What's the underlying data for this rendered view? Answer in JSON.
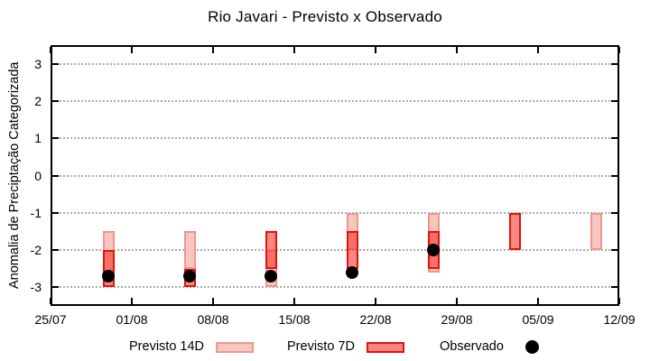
{
  "chart_data": {
    "type": "bar",
    "subtype": "overlapping-range-bars-with-points",
    "title": "Rio Javari - Previsto x Observado",
    "ylabel": "Anomalia de Preciptação Categorizada",
    "xlabel": "",
    "ylim": [
      -3.5,
      3.5
    ],
    "yticks": [
      3,
      2,
      1,
      0,
      -1,
      -2,
      -3
    ],
    "xtick_labels": [
      "25/07",
      "01/08",
      "08/08",
      "15/08",
      "22/08",
      "29/08",
      "05/09",
      "12/09"
    ],
    "xtick_days": [
      0,
      7,
      14,
      21,
      28,
      35,
      42,
      49
    ],
    "x_total_days": 49,
    "grid": "horizontal dotted gray lines at integer y values, no vertical grid",
    "legend_position": "bottom, outside plot",
    "colors": {
      "previsto_14d_fill": "#f8c6c0",
      "previsto_14d_border": "#ef968e",
      "previsto_7d_fill": "rgba(247,50,40,0.58)",
      "previsto_7d_border": "#e3120b",
      "observado": "#000000",
      "gridline": "#ababab",
      "frame": "#000000"
    },
    "series": [
      {
        "name": "Previsto 14D",
        "type": "range-bar",
        "points": [
          {
            "date": "30/07",
            "day": 5,
            "high": -1.5,
            "low": -2.6
          },
          {
            "date": "06/08",
            "day": 12,
            "high": -1.5,
            "low": -2.5
          },
          {
            "date": "13/08",
            "day": 19,
            "high": -2.0,
            "low": -3.0
          },
          {
            "date": "20/08",
            "day": 26,
            "high": -1.0,
            "low": -2.0
          },
          {
            "date": "27/08",
            "day": 33,
            "high": -1.0,
            "low": -2.6
          },
          {
            "date": "10/09",
            "day": 47,
            "high": -1.0,
            "low": -2.0
          }
        ]
      },
      {
        "name": "Previsto 7D",
        "type": "range-bar",
        "points": [
          {
            "date": "30/07",
            "day": 5,
            "high": -2.0,
            "low": -3.0
          },
          {
            "date": "06/08",
            "day": 12,
            "high": -2.5,
            "low": -3.0
          },
          {
            "date": "13/08",
            "day": 19,
            "high": -1.5,
            "low": -2.5
          },
          {
            "date": "20/08",
            "day": 26,
            "high": -1.5,
            "low": -2.5
          },
          {
            "date": "27/08",
            "day": 33,
            "high": -1.5,
            "low": -2.5
          },
          {
            "date": "03/09",
            "day": 40,
            "high": -1.0,
            "low": -2.0
          }
        ]
      },
      {
        "name": "Observado",
        "type": "point",
        "points": [
          {
            "date": "30/07",
            "day": 5,
            "value": -2.7
          },
          {
            "date": "06/08",
            "day": 12,
            "value": -2.7
          },
          {
            "date": "13/08",
            "day": 19,
            "value": -2.7
          },
          {
            "date": "20/08",
            "day": 26,
            "value": -2.6
          },
          {
            "date": "27/08",
            "day": 33,
            "value": -2.0
          }
        ]
      }
    ],
    "legend": [
      {
        "label": "Previsto 14D",
        "swatch": "light-pink-box"
      },
      {
        "label": "Previsto 7D",
        "swatch": "red-box"
      },
      {
        "label": "Observado",
        "swatch": "black-dot"
      }
    ]
  }
}
